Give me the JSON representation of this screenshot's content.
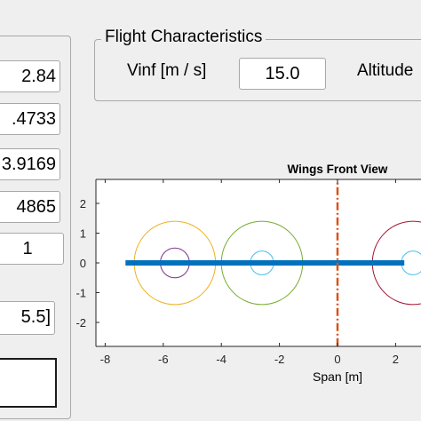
{
  "left_panel": {
    "fields": [
      "2.84",
      ".4733",
      "3.9169",
      "4865",
      "1",
      "5.5]"
    ]
  },
  "flight": {
    "title": "Flight Characteristics",
    "vinf_label": "Vinf [m / s]",
    "vinf_value": "15.0",
    "altitude_label": "Altitude"
  },
  "chart_data": {
    "type": "line",
    "title": "Wings Front View",
    "xlabel": "Span [m]",
    "ylabel": "",
    "xlim": [
      -8.5,
      3
    ],
    "ylim": [
      -2.8,
      2.8
    ],
    "xticks": [
      -8,
      -6,
      -4,
      -2,
      0,
      2
    ],
    "yticks": [
      -2,
      -1,
      0,
      1,
      2
    ],
    "series": [
      {
        "kind": "wing-line",
        "x": [
          -7.3,
          2.3
        ],
        "y": [
          0,
          0
        ],
        "color": "#0072bd"
      },
      {
        "kind": "centerline",
        "x": [
          0,
          0
        ],
        "y": [
          -2.8,
          2.8
        ],
        "color": "#d95319"
      }
    ],
    "circles": [
      {
        "cx": -5.6,
        "cy": 0,
        "r": 1.4,
        "color": "#edb120"
      },
      {
        "cx": -5.6,
        "cy": 0,
        "r": 0.5,
        "color": "#7e2f8e"
      },
      {
        "cx": -2.6,
        "cy": 0,
        "r": 1.4,
        "color": "#77ac30"
      },
      {
        "cx": -2.6,
        "cy": 0,
        "r": 0.4,
        "color": "#4dbeee"
      },
      {
        "cx": 2.6,
        "cy": 0,
        "r": 1.4,
        "color": "#a2142f"
      },
      {
        "cx": 2.6,
        "cy": 0,
        "r": 0.4,
        "color": "#4dbeee"
      }
    ]
  }
}
